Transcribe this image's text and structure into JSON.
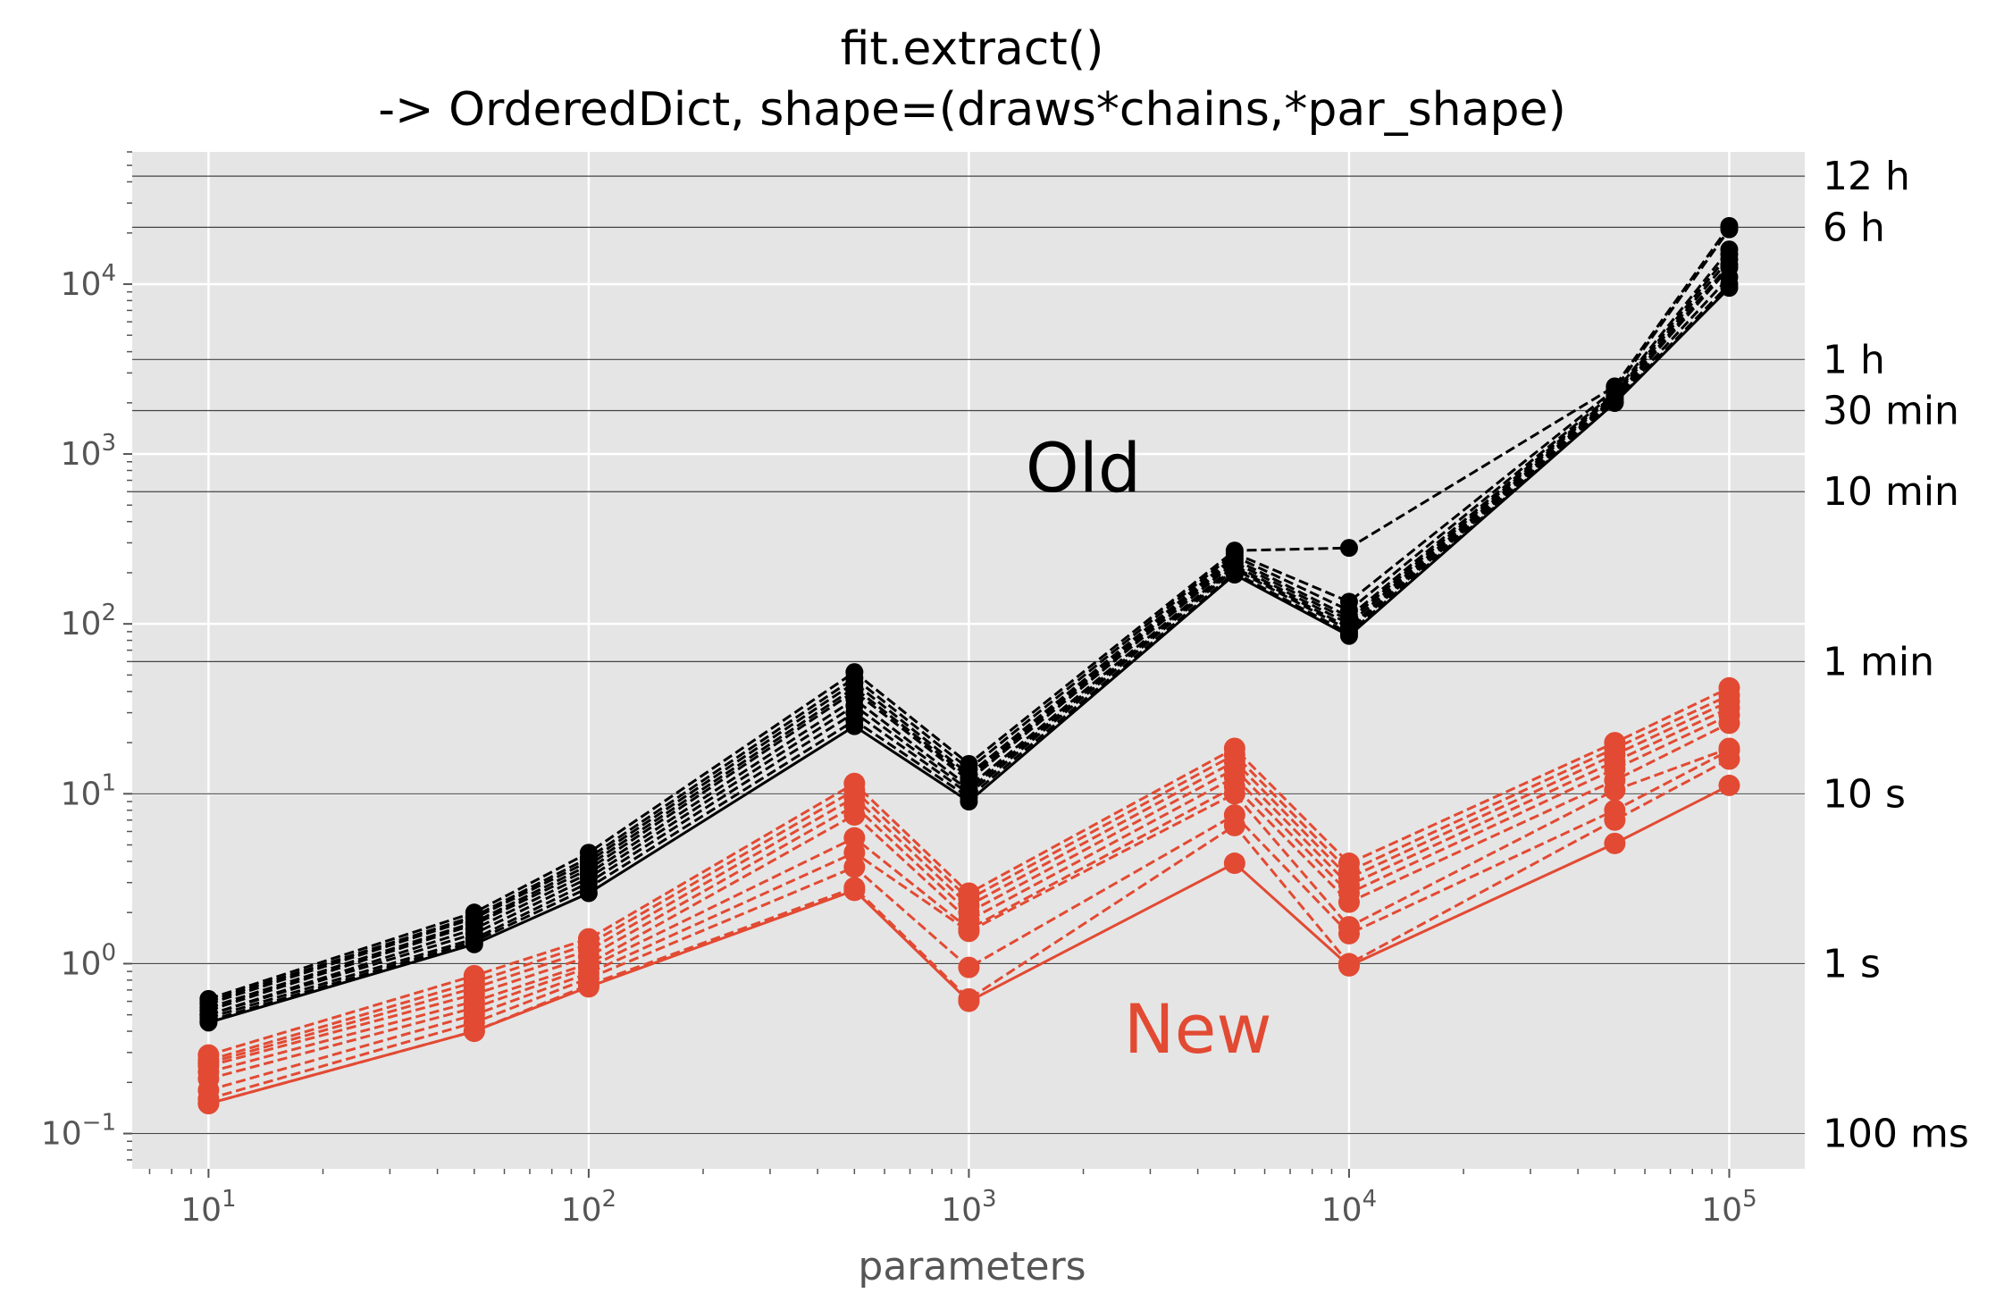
{
  "chart_data": {
    "type": "line",
    "title": "fit.extract()",
    "subtitle": "-> OrderedDict, shape=(draws*chains,*par_shape)",
    "xlabel": "parameters",
    "ylabel": "",
    "xscale": "log",
    "yscale": "log",
    "xlim": [
      6.3,
      158000
    ],
    "ylim": [
      0.062,
      60000
    ],
    "grid": true,
    "background": "#e5e5e5",
    "x": [
      10,
      50,
      100,
      500,
      1000,
      5000,
      10000,
      50000,
      100000
    ],
    "x_tick_labels": [
      {
        "base": "10",
        "exp": "1",
        "value": 10
      },
      {
        "base": "10",
        "exp": "2",
        "value": 100
      },
      {
        "base": "10",
        "exp": "3",
        "value": 1000
      },
      {
        "base": "10",
        "exp": "4",
        "value": 10000
      },
      {
        "base": "10",
        "exp": "5",
        "value": 100000
      }
    ],
    "y_tick_labels": [
      {
        "base": "10",
        "exp": "−1",
        "value": 0.1
      },
      {
        "base": "10",
        "exp": "0",
        "value": 1
      },
      {
        "base": "10",
        "exp": "1",
        "value": 10
      },
      {
        "base": "10",
        "exp": "2",
        "value": 100
      },
      {
        "base": "10",
        "exp": "3",
        "value": 1000
      },
      {
        "base": "10",
        "exp": "4",
        "value": 10000
      }
    ],
    "reference_lines": [
      {
        "label": "100 ms",
        "value": 0.1
      },
      {
        "label": "1 s",
        "value": 1
      },
      {
        "label": "10 s",
        "value": 10
      },
      {
        "label": "1 min",
        "value": 60
      },
      {
        "label": "10 min",
        "value": 600
      },
      {
        "label": "30 min",
        "value": 1800
      },
      {
        "label": "1 h",
        "value": 3600
      },
      {
        "label": "6 h",
        "value": 21600
      },
      {
        "label": "12 h",
        "value": 43200
      }
    ],
    "annotations": [
      {
        "text": "Old",
        "x": 2000,
        "y": 600,
        "color": "#000000"
      },
      {
        "text": "New",
        "x": 4000,
        "y": 0.3,
        "color": "#e24a33"
      }
    ],
    "colors": {
      "old": "#000000",
      "new": "#e24a33",
      "refline": "#444444",
      "grid": "#ffffff"
    },
    "series": [
      {
        "group": "old",
        "style": "dashed",
        "values": [
          0.62,
          2.0,
          4.5,
          52,
          15,
          270,
          280,
          2500,
          22000
        ]
      },
      {
        "group": "old",
        "style": "dashed",
        "values": [
          0.6,
          1.9,
          4.2,
          48,
          14,
          260,
          135,
          2400,
          21000
        ]
      },
      {
        "group": "old",
        "style": "dashed",
        "values": [
          0.58,
          1.85,
          4.0,
          45,
          13,
          250,
          120,
          2300,
          16000
        ]
      },
      {
        "group": "old",
        "style": "dashed",
        "values": [
          0.55,
          1.75,
          3.8,
          42,
          12.5,
          240,
          110,
          2250,
          15000
        ]
      },
      {
        "group": "old",
        "style": "dashed",
        "values": [
          0.53,
          1.7,
          3.6,
          40,
          12,
          230,
          105,
          2200,
          14000
        ]
      },
      {
        "group": "old",
        "style": "dashed",
        "values": [
          0.5,
          1.6,
          3.4,
          36,
          11,
          220,
          100,
          2150,
          13000
        ]
      },
      {
        "group": "old",
        "style": "dashed",
        "values": [
          0.5,
          1.5,
          3.2,
          33,
          10.5,
          215,
          95,
          2100,
          12500
        ]
      },
      {
        "group": "old",
        "style": "dashed",
        "values": [
          0.48,
          1.4,
          3.0,
          30,
          10,
          210,
          92,
          2050,
          11000
        ]
      },
      {
        "group": "old",
        "style": "dashed",
        "values": [
          0.46,
          1.35,
          2.8,
          27,
          9.5,
          200,
          88,
          2000,
          10000
        ]
      },
      {
        "group": "old",
        "style": "solid",
        "values": [
          0.45,
          1.3,
          2.6,
          25,
          9,
          195,
          85,
          2000,
          9500
        ]
      },
      {
        "group": "new",
        "style": "dashed",
        "values": [
          0.29,
          0.85,
          1.4,
          11.5,
          2.6,
          18.5,
          3.9,
          20,
          42
        ]
      },
      {
        "group": "new",
        "style": "dashed",
        "values": [
          0.27,
          0.78,
          1.3,
          10.5,
          2.4,
          17,
          3.5,
          18.5,
          38
        ]
      },
      {
        "group": "new",
        "style": "dashed",
        "values": [
          0.26,
          0.72,
          1.2,
          9.5,
          2.2,
          15.5,
          3.2,
          17,
          35
        ]
      },
      {
        "group": "new",
        "style": "dashed",
        "values": [
          0.25,
          0.66,
          1.1,
          8.5,
          2.0,
          14,
          2.9,
          15.5,
          32
        ]
      },
      {
        "group": "new",
        "style": "dashed",
        "values": [
          0.23,
          0.6,
          1.0,
          7.5,
          1.8,
          12.5,
          2.6,
          14,
          29
        ]
      },
      {
        "group": "new",
        "style": "dashed",
        "values": [
          0.21,
          0.55,
          0.95,
          5.5,
          1.6,
          11,
          2.3,
          12,
          26
        ]
      },
      {
        "group": "new",
        "style": "dashed",
        "values": [
          0.18,
          0.5,
          0.88,
          4.5,
          1.55,
          10,
          1.65,
          10.5,
          18.5
        ]
      },
      {
        "group": "new",
        "style": "dashed",
        "values": [
          0.16,
          0.45,
          0.82,
          3.7,
          0.95,
          7.5,
          1.5,
          8,
          18
        ]
      },
      {
        "group": "new",
        "style": "dashed",
        "values": [
          0.15,
          0.4,
          0.75,
          2.8,
          0.62,
          6.5,
          1.0,
          7,
          16
        ]
      },
      {
        "group": "new",
        "style": "solid",
        "values": [
          0.15,
          0.4,
          0.73,
          2.7,
          0.6,
          3.9,
          0.97,
          5.1,
          11.2
        ]
      }
    ]
  }
}
